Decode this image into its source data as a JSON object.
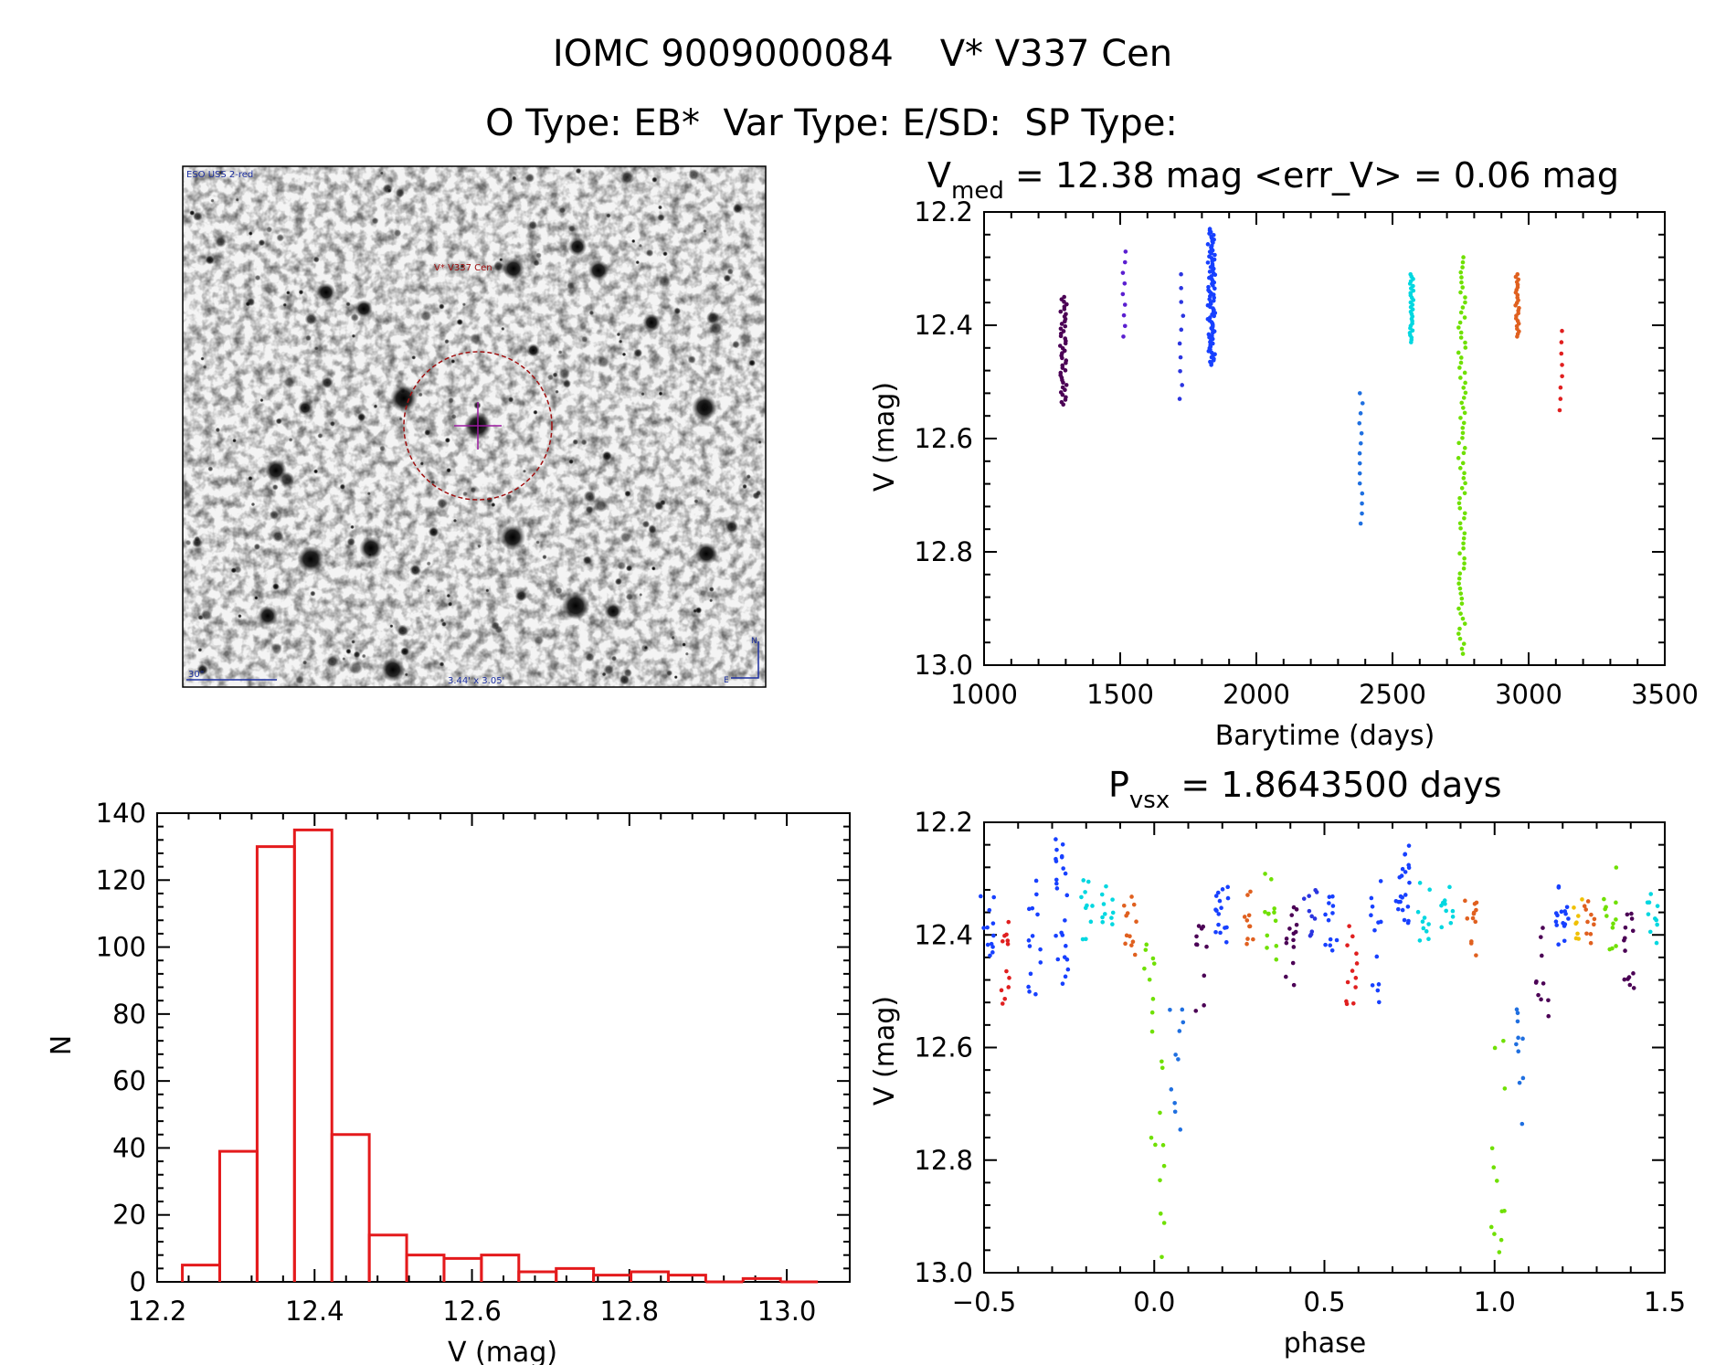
{
  "header": {
    "line1": "IOMC 9009000084    V* V337 Cen",
    "line2": "O Type: EB*  Var Type: E/SD:  SP Type:"
  },
  "image_panel": {
    "survey_label": "ESO USS 2-red",
    "object_label": "V* V337 Cen",
    "scale_label": "30\"",
    "size_label": "3.44' x 3.05'",
    "north_label": "N",
    "east_label": "E"
  },
  "chart_data": [
    {
      "id": "lightcurve",
      "type": "scatter",
      "title": {
        "base": "V",
        "sub": "med",
        "rest": " = 12.38 mag <err_V> = 0.06 mag"
      },
      "xlabel": "Barytime (days)",
      "ylabel": "V (mag)",
      "xlim": [
        1000,
        3500
      ],
      "ylim": [
        13.0,
        12.2
      ],
      "xticks": [
        1000,
        1500,
        2000,
        2500,
        3000,
        3500
      ],
      "yticks": [
        12.2,
        12.4,
        12.6,
        12.8,
        13.0
      ],
      "groups": [
        {
          "x": 1290,
          "ymin": 12.35,
          "ymax": 12.54,
          "n": 45,
          "color": "#4b0055"
        },
        {
          "x": 1515,
          "ymin": 12.27,
          "ymax": 12.42,
          "n": 9,
          "color": "#5a1fd0"
        },
        {
          "x": 1725,
          "ymin": 12.31,
          "ymax": 12.53,
          "n": 10,
          "color": "#2b35e0"
        },
        {
          "x": 1835,
          "ymin": 12.23,
          "ymax": 12.47,
          "n": 90,
          "color": "#1740ff"
        },
        {
          "x": 2385,
          "ymin": 12.52,
          "ymax": 12.75,
          "n": 14,
          "color": "#1f6fe0"
        },
        {
          "x": 2570,
          "ymin": 12.31,
          "ymax": 12.43,
          "n": 30,
          "color": "#00d7e0"
        },
        {
          "x": 2755,
          "ymin": 12.28,
          "ymax": 12.98,
          "n": 80,
          "color": "#6fe000"
        },
        {
          "x": 2958,
          "ymin": 12.31,
          "ymax": 12.42,
          "n": 25,
          "color": "#e0601f"
        },
        {
          "x": 3120,
          "ymin": 12.41,
          "ymax": 12.55,
          "n": 8,
          "color": "#e01f1f"
        }
      ]
    },
    {
      "id": "histogram",
      "type": "bar",
      "xlabel": "V (mag)",
      "ylabel": "N",
      "xlim": [
        12.2,
        13.08
      ],
      "ylim": [
        0,
        140
      ],
      "xticks": [
        12.2,
        12.4,
        12.6,
        12.8,
        13.0
      ],
      "yticks": [
        0,
        20,
        40,
        60,
        80,
        100,
        120,
        140
      ],
      "bin_start": 12.232,
      "bin_width": 0.0475,
      "values": [
        5,
        39,
        130,
        135,
        44,
        14,
        8,
        7,
        8,
        3,
        4,
        2,
        3,
        2,
        0,
        1,
        0
      ],
      "color": "#e41a1c"
    },
    {
      "id": "phased",
      "type": "scatter",
      "title": {
        "base": "P",
        "sub": "vsx",
        "rest": " = 1.8643500 days"
      },
      "xlabel": "phase",
      "ylabel": "V (mag)",
      "xlim": [
        -0.5,
        1.5
      ],
      "ylim": [
        13.0,
        12.2
      ],
      "xticks": [
        -0.5,
        0.0,
        0.5,
        1.0,
        1.5
      ],
      "yticks": [
        12.2,
        12.4,
        12.6,
        12.8,
        13.0
      ],
      "clusters": [
        {
          "x": 0.01,
          "ymin": 12.57,
          "ymax": 12.98,
          "n": 12,
          "color": "#6fe000"
        },
        {
          "x": 0.065,
          "ymin": 12.52,
          "ymax": 12.75,
          "n": 10,
          "color": "#1f6fe0"
        },
        {
          "x": 0.14,
          "ymin": 12.37,
          "ymax": 12.55,
          "n": 10,
          "color": "#4b0055"
        },
        {
          "x": 0.2,
          "ymin": 12.31,
          "ymax": 12.42,
          "n": 16,
          "color": "#1740ff"
        },
        {
          "x": 0.28,
          "ymin": 12.32,
          "ymax": 12.42,
          "n": 10,
          "color": "#e0601f"
        },
        {
          "x": 0.34,
          "ymin": 12.28,
          "ymax": 12.45,
          "n": 12,
          "color": "#6fe000"
        },
        {
          "x": 0.4,
          "ymin": 12.35,
          "ymax": 12.5,
          "n": 14,
          "color": "#4b0055"
        },
        {
          "x": 0.46,
          "ymin": 12.32,
          "ymax": 12.42,
          "n": 10,
          "color": "#2b35e0"
        },
        {
          "x": 0.52,
          "ymin": 12.33,
          "ymax": 12.43,
          "n": 12,
          "color": "#1740ff"
        },
        {
          "x": 0.58,
          "ymin": 12.38,
          "ymax": 12.55,
          "n": 12,
          "color": "#e01f1f"
        },
        {
          "x": 0.65,
          "ymin": 12.3,
          "ymax": 12.52,
          "n": 12,
          "color": "#1740ff"
        },
        {
          "x": 0.73,
          "ymin": 12.24,
          "ymax": 12.38,
          "n": 22,
          "color": "#1740ff"
        },
        {
          "x": 0.79,
          "ymin": 12.3,
          "ymax": 12.42,
          "n": 10,
          "color": "#00d7e0"
        },
        {
          "x": 0.86,
          "ymin": 12.31,
          "ymax": 12.4,
          "n": 10,
          "color": "#00d7e0"
        },
        {
          "x": 0.93,
          "ymin": 12.33,
          "ymax": 12.44,
          "n": 12,
          "color": "#e0601f"
        },
        {
          "x": -0.49,
          "ymin": 12.33,
          "ymax": 12.45,
          "n": 12,
          "color": "#1740ff"
        },
        {
          "x": -0.43,
          "ymin": 12.37,
          "ymax": 12.55,
          "n": 12,
          "color": "#e01f1f"
        },
        {
          "x": -0.35,
          "ymin": 12.29,
          "ymax": 12.52,
          "n": 14,
          "color": "#1740ff"
        },
        {
          "x": -0.27,
          "ymin": 12.23,
          "ymax": 12.52,
          "n": 24,
          "color": "#1740ff"
        },
        {
          "x": -0.2,
          "ymin": 12.3,
          "ymax": 12.42,
          "n": 10,
          "color": "#00d7e0"
        },
        {
          "x": -0.14,
          "ymin": 12.31,
          "ymax": 12.4,
          "n": 10,
          "color": "#00d7e0"
        },
        {
          "x": -0.07,
          "ymin": 12.33,
          "ymax": 12.44,
          "n": 12,
          "color": "#e0601f"
        },
        {
          "x": -0.01,
          "ymin": 12.4,
          "ymax": 12.55,
          "n": 8,
          "color": "#6fe000"
        },
        {
          "x": 1.01,
          "ymin": 12.57,
          "ymax": 12.98,
          "n": 12,
          "color": "#6fe000"
        },
        {
          "x": 1.065,
          "ymin": 12.52,
          "ymax": 12.75,
          "n": 10,
          "color": "#1f6fe0"
        },
        {
          "x": 1.14,
          "ymin": 12.37,
          "ymax": 12.55,
          "n": 10,
          "color": "#4b0055"
        },
        {
          "x": 1.2,
          "ymin": 12.31,
          "ymax": 12.42,
          "n": 16,
          "color": "#1740ff"
        },
        {
          "x": 1.24,
          "ymin": 12.33,
          "ymax": 12.42,
          "n": 8,
          "color": "#f0c000"
        },
        {
          "x": 1.28,
          "ymin": 12.32,
          "ymax": 12.42,
          "n": 10,
          "color": "#e0601f"
        },
        {
          "x": 1.34,
          "ymin": 12.28,
          "ymax": 12.45,
          "n": 12,
          "color": "#6fe000"
        },
        {
          "x": 1.4,
          "ymin": 12.35,
          "ymax": 12.5,
          "n": 14,
          "color": "#4b0055"
        },
        {
          "x": 1.46,
          "ymin": 12.32,
          "ymax": 12.42,
          "n": 10,
          "color": "#00d7e0"
        }
      ]
    }
  ]
}
